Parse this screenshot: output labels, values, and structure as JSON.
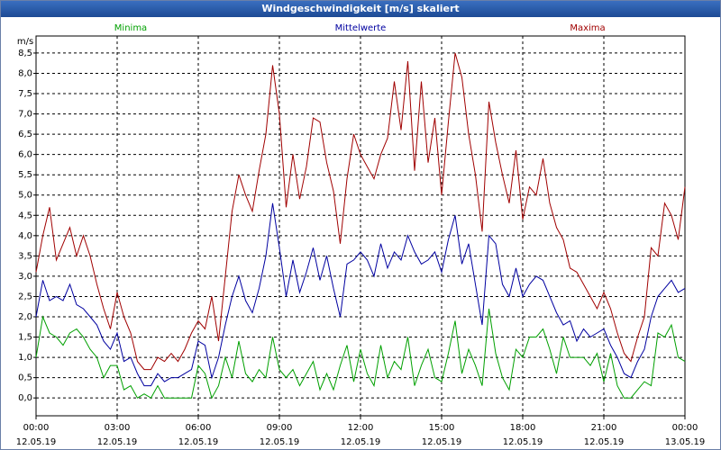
{
  "chart_data": {
    "type": "line",
    "title": "Windgeschwindigkeit [m/s] skaliert",
    "y_label": "m/s",
    "xlim": [
      0,
      24
    ],
    "ylim": [
      -0.44,
      8.92
    ],
    "grid": true,
    "xticks": [
      {
        "value": 0,
        "label": "00:00",
        "sublabel": "12.05.19"
      },
      {
        "value": 3,
        "label": "03:00",
        "sublabel": "12.05.19"
      },
      {
        "value": 6,
        "label": "06:00",
        "sublabel": "12.05.19"
      },
      {
        "value": 9,
        "label": "09:00",
        "sublabel": "12.05.19"
      },
      {
        "value": 12,
        "label": "12:00",
        "sublabel": "12.05.19"
      },
      {
        "value": 15,
        "label": "15:00",
        "sublabel": "12.05.19"
      },
      {
        "value": 18,
        "label": "18:00",
        "sublabel": "12.05.19"
      },
      {
        "value": 21,
        "label": "21:00",
        "sublabel": "12.05.19"
      },
      {
        "value": 24,
        "label": "00:00",
        "sublabel": "13.05.19"
      }
    ],
    "yticks": [
      {
        "value": 0,
        "label": "0,0"
      },
      {
        "value": 0.5,
        "label": "0,5"
      },
      {
        "value": 1,
        "label": "1,0"
      },
      {
        "value": 1.5,
        "label": "1,5"
      },
      {
        "value": 2,
        "label": "2,0"
      },
      {
        "value": 2.5,
        "label": "2,5"
      },
      {
        "value": 3,
        "label": "3,0"
      },
      {
        "value": 3.5,
        "label": "3,5"
      },
      {
        "value": 4,
        "label": "4,0"
      },
      {
        "value": 4.5,
        "label": "4,5"
      },
      {
        "value": 5,
        "label": "5,0"
      },
      {
        "value": 5.5,
        "label": "5,5"
      },
      {
        "value": 6,
        "label": "6,0"
      },
      {
        "value": 6.5,
        "label": "6,5"
      },
      {
        "value": 7,
        "label": "7,0"
      },
      {
        "value": 7.5,
        "label": "7,5"
      },
      {
        "value": 8,
        "label": "8,0"
      },
      {
        "value": 8.5,
        "label": "8,5"
      }
    ],
    "x": [
      0,
      0.25,
      0.5,
      0.75,
      1,
      1.25,
      1.5,
      1.75,
      2,
      2.25,
      2.5,
      2.75,
      3,
      3.25,
      3.5,
      3.75,
      4,
      4.25,
      4.5,
      4.75,
      5,
      5.25,
      5.5,
      5.75,
      6,
      6.25,
      6.5,
      6.75,
      7,
      7.25,
      7.5,
      7.75,
      8,
      8.25,
      8.5,
      8.75,
      9,
      9.25,
      9.5,
      9.75,
      10,
      10.25,
      10.5,
      10.75,
      11,
      11.25,
      11.5,
      11.75,
      12,
      12.25,
      12.5,
      12.75,
      13,
      13.25,
      13.5,
      13.75,
      14,
      14.25,
      14.5,
      14.75,
      15,
      15.25,
      15.5,
      15.75,
      16,
      16.25,
      16.5,
      16.75,
      17,
      17.25,
      17.5,
      17.75,
      18,
      18.25,
      18.5,
      18.75,
      19,
      19.25,
      19.5,
      19.75,
      20,
      20.25,
      20.5,
      20.75,
      21,
      21.25,
      21.5,
      21.75,
      22,
      22.25,
      22.5,
      22.75,
      23,
      23.25,
      23.5,
      23.75,
      24
    ],
    "series": [
      {
        "name": "Minima",
        "color": "#00a000",
        "values": [
          1.0,
          2.0,
          1.6,
          1.5,
          1.3,
          1.6,
          1.7,
          1.5,
          1.2,
          1.0,
          0.5,
          0.8,
          0.8,
          0.2,
          0.3,
          0.0,
          0.1,
          0.0,
          0.3,
          0.0,
          0.0,
          0.0,
          0.0,
          0.0,
          0.8,
          0.6,
          0.0,
          0.3,
          1.0,
          0.5,
          1.4,
          0.6,
          0.4,
          0.7,
          0.5,
          1.5,
          0.7,
          0.5,
          0.7,
          0.3,
          0.6,
          0.9,
          0.2,
          0.6,
          0.2,
          0.8,
          1.3,
          0.4,
          1.2,
          0.6,
          0.3,
          1.3,
          0.5,
          0.9,
          0.7,
          1.5,
          0.3,
          0.8,
          1.2,
          0.5,
          0.4,
          1.1,
          1.9,
          0.6,
          1.2,
          0.8,
          0.3,
          2.2,
          1.1,
          0.5,
          0.2,
          1.2,
          1.0,
          1.5,
          1.5,
          1.7,
          1.2,
          0.6,
          1.5,
          1.0,
          1.0,
          1.0,
          0.8,
          1.1,
          0.4,
          1.1,
          0.3,
          0.0,
          0.0,
          0.2,
          0.4,
          0.3,
          1.6,
          1.5,
          1.8,
          1.0,
          0.9
        ]
      },
      {
        "name": "Mittelwerte",
        "color": "#0000a0",
        "values": [
          2.0,
          2.9,
          2.4,
          2.5,
          2.4,
          2.8,
          2.3,
          2.2,
          2.0,
          1.8,
          1.4,
          1.2,
          1.6,
          0.9,
          1.0,
          0.6,
          0.3,
          0.3,
          0.6,
          0.4,
          0.5,
          0.5,
          0.6,
          0.7,
          1.4,
          1.3,
          0.5,
          1.0,
          1.8,
          2.5,
          3.0,
          2.4,
          2.1,
          2.7,
          3.5,
          4.8,
          3.7,
          2.5,
          3.4,
          2.6,
          3.1,
          3.7,
          2.9,
          3.5,
          2.7,
          2.0,
          3.3,
          3.4,
          3.6,
          3.4,
          3.0,
          3.8,
          3.2,
          3.6,
          3.4,
          4.0,
          3.6,
          3.3,
          3.4,
          3.6,
          3.1,
          3.9,
          4.5,
          3.3,
          3.8,
          2.8,
          1.8,
          4.0,
          3.8,
          2.8,
          2.5,
          3.2,
          2.5,
          2.8,
          3.0,
          2.9,
          2.5,
          2.1,
          1.8,
          1.9,
          1.4,
          1.7,
          1.5,
          1.6,
          1.7,
          1.3,
          1.0,
          0.6,
          0.5,
          0.9,
          1.2,
          2.0,
          2.5,
          2.7,
          2.9,
          2.6,
          2.7
        ]
      },
      {
        "name": "Maxima",
        "color": "#a00000",
        "values": [
          3.1,
          4.0,
          4.7,
          3.4,
          3.8,
          4.2,
          3.5,
          4.0,
          3.5,
          2.8,
          2.2,
          1.7,
          2.6,
          2.0,
          1.6,
          0.9,
          0.7,
          0.7,
          1.0,
          0.9,
          1.1,
          0.9,
          1.2,
          1.6,
          1.9,
          1.7,
          2.5,
          1.4,
          3.0,
          4.6,
          5.5,
          5.0,
          4.6,
          5.6,
          6.5,
          8.2,
          7.0,
          4.7,
          6.0,
          4.9,
          5.7,
          6.9,
          6.8,
          5.8,
          5.1,
          3.8,
          5.4,
          6.5,
          6.0,
          5.7,
          5.4,
          6.0,
          6.4,
          7.8,
          6.6,
          8.3,
          5.6,
          7.8,
          5.8,
          6.9,
          5.0,
          6.8,
          8.5,
          7.9,
          6.5,
          5.5,
          4.1,
          7.3,
          6.3,
          5.5,
          4.8,
          6.1,
          4.4,
          5.2,
          5.0,
          5.9,
          4.8,
          4.2,
          3.9,
          3.2,
          3.1,
          2.8,
          2.5,
          2.2,
          2.6,
          2.2,
          1.6,
          1.1,
          0.9,
          1.5,
          2.0,
          3.7,
          3.5,
          4.8,
          4.5,
          3.9,
          5.2
        ]
      }
    ]
  }
}
